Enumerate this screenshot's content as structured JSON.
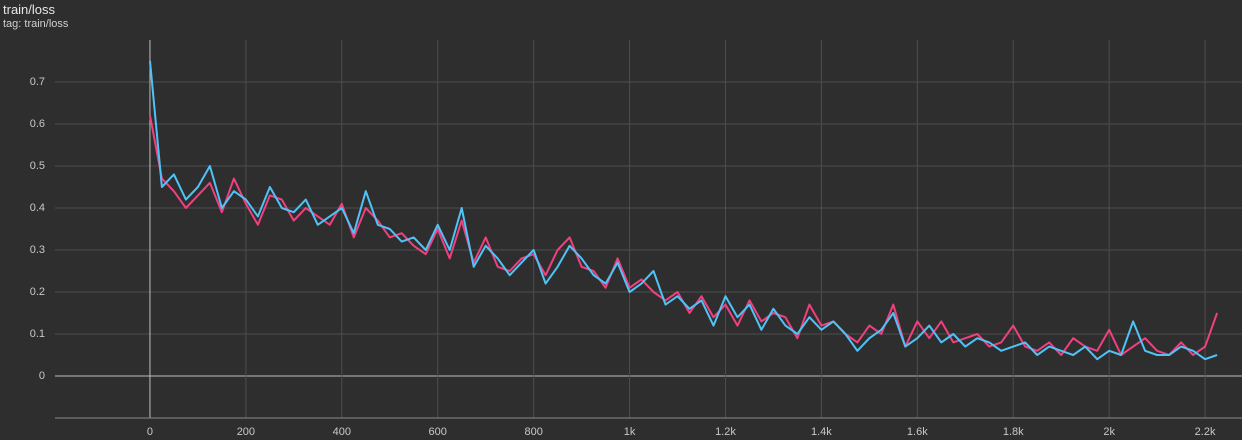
{
  "chart_data": {
    "type": "line",
    "title": "train/loss",
    "subtitle": "tag: train/loss",
    "x": [
      0,
      25,
      50,
      75,
      100,
      125,
      150,
      175,
      200,
      225,
      250,
      275,
      300,
      325,
      350,
      375,
      400,
      425,
      450,
      475,
      500,
      525,
      550,
      575,
      600,
      625,
      650,
      675,
      700,
      725,
      750,
      775,
      800,
      825,
      850,
      875,
      900,
      925,
      950,
      975,
      1000,
      1025,
      1050,
      1075,
      1100,
      1125,
      1150,
      1175,
      1200,
      1225,
      1250,
      1275,
      1300,
      1325,
      1350,
      1375,
      1400,
      1425,
      1450,
      1475,
      1500,
      1525,
      1550,
      1575,
      1600,
      1625,
      1650,
      1675,
      1700,
      1725,
      1750,
      1775,
      1800,
      1825,
      1850,
      1875,
      1900,
      1925,
      1950,
      1975,
      2000,
      2025,
      2050,
      2075,
      2100,
      2125,
      2150,
      2175,
      2200,
      2225
    ],
    "series": [
      {
        "color": "#f0407f",
        "values": [
          0.62,
          0.47,
          0.44,
          0.4,
          0.43,
          0.46,
          0.39,
          0.47,
          0.41,
          0.36,
          0.43,
          0.42,
          0.37,
          0.4,
          0.38,
          0.36,
          0.41,
          0.33,
          0.4,
          0.37,
          0.33,
          0.34,
          0.31,
          0.29,
          0.35,
          0.28,
          0.37,
          0.27,
          0.33,
          0.26,
          0.25,
          0.28,
          0.29,
          0.24,
          0.3,
          0.33,
          0.26,
          0.25,
          0.21,
          0.28,
          0.21,
          0.23,
          0.2,
          0.18,
          0.2,
          0.15,
          0.19,
          0.14,
          0.17,
          0.12,
          0.18,
          0.13,
          0.15,
          0.14,
          0.09,
          0.17,
          0.12,
          0.13,
          0.1,
          0.08,
          0.12,
          0.1,
          0.17,
          0.07,
          0.13,
          0.09,
          0.13,
          0.08,
          0.09,
          0.1,
          0.07,
          0.08,
          0.12,
          0.07,
          0.06,
          0.08,
          0.05,
          0.09,
          0.07,
          0.06,
          0.11,
          0.05,
          0.07,
          0.09,
          0.06,
          0.05,
          0.08,
          0.05,
          0.07,
          0.15
        ]
      },
      {
        "color": "#4fc3f7",
        "values": [
          0.75,
          0.45,
          0.48,
          0.42,
          0.45,
          0.5,
          0.4,
          0.44,
          0.42,
          0.38,
          0.45,
          0.4,
          0.39,
          0.42,
          0.36,
          0.38,
          0.4,
          0.34,
          0.44,
          0.36,
          0.35,
          0.32,
          0.33,
          0.3,
          0.36,
          0.3,
          0.4,
          0.26,
          0.31,
          0.28,
          0.24,
          0.27,
          0.3,
          0.22,
          0.26,
          0.31,
          0.28,
          0.24,
          0.22,
          0.27,
          0.2,
          0.22,
          0.25,
          0.17,
          0.19,
          0.16,
          0.18,
          0.12,
          0.19,
          0.14,
          0.17,
          0.11,
          0.16,
          0.12,
          0.1,
          0.14,
          0.11,
          0.13,
          0.1,
          0.06,
          0.09,
          0.11,
          0.15,
          0.07,
          0.09,
          0.12,
          0.08,
          0.1,
          0.07,
          0.09,
          0.08,
          0.06,
          0.07,
          0.08,
          0.05,
          0.07,
          0.06,
          0.05,
          0.07,
          0.04,
          0.06,
          0.05,
          0.13,
          0.06,
          0.05,
          0.05,
          0.07,
          0.06,
          0.04,
          0.05
        ]
      }
    ],
    "xlim": [
      -198,
      2277
    ],
    "ylim": [
      -0.1,
      0.8
    ],
    "xticks": [
      0,
      200,
      400,
      600,
      800,
      {
        "value": 1000,
        "label": "1k"
      },
      {
        "value": 1200,
        "label": "1.2k"
      },
      {
        "value": 1400,
        "label": "1.4k"
      },
      {
        "value": 1600,
        "label": "1.6k"
      },
      {
        "value": 1800,
        "label": "1.8k"
      },
      {
        "value": 2000,
        "label": "2k"
      },
      {
        "value": 2200,
        "label": "2.2k"
      }
    ],
    "yticks": [
      0,
      0.1,
      0.2,
      0.3,
      0.4,
      0.5,
      0.6,
      0.7
    ],
    "grid": true
  }
}
